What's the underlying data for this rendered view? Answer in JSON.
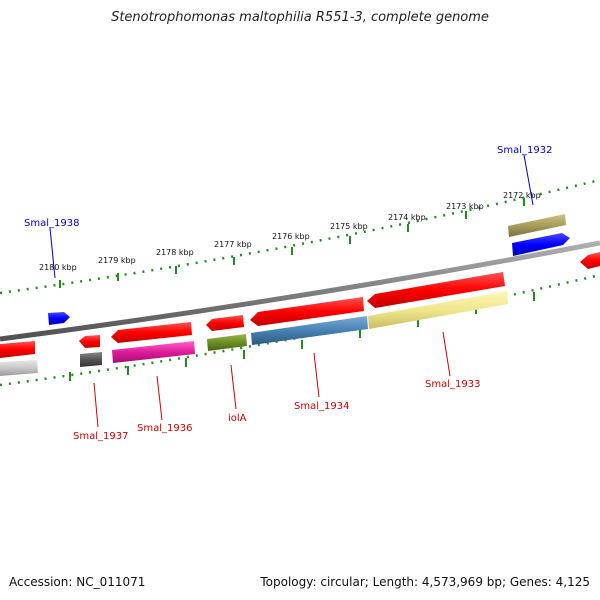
{
  "title": "Stenotrophomonas maltophilia R551-3, complete genome",
  "footer": {
    "accession": "Accession: NC_011071",
    "topology": "Topology: circular; Length: 4,573,969 bp; Genes: 4,125"
  },
  "kbp_ticks": [
    "2180 kbp",
    "2179 kbp",
    "2178 kbp",
    "2177 kbp",
    "2176 kbp",
    "2175 kbp",
    "2174 kbp",
    "2173 kbp",
    "2172 kbp"
  ],
  "genes": [
    {
      "label": "Smal_1938",
      "color": "#0000cc"
    },
    {
      "label": "Smal_1932",
      "color": "#0000cc"
    },
    {
      "label": "Smal_1937",
      "color": "#cc0000"
    },
    {
      "label": "Smal_1936",
      "color": "#cc0000"
    },
    {
      "label": "iolA",
      "color": "#cc0000"
    },
    {
      "label": "Smal_1934",
      "color": "#cc0000"
    },
    {
      "label": "Smal_1933",
      "color": "#cc0000"
    }
  ],
  "colors": {
    "backbone": "#808080",
    "tick_track": "#228b22",
    "cds_forward": "#0000ff",
    "cds_reverse": "#ff0000",
    "cog_gray": "#c8c8c8",
    "cog_dark": "#555555",
    "cog_magenta": "#e01b9b",
    "cog_olive": "#6b8e23",
    "cog_steelblue": "#4682b4",
    "cog_khaki": "#f0e68c",
    "cog_darkkhaki": "#a89c5a"
  }
}
